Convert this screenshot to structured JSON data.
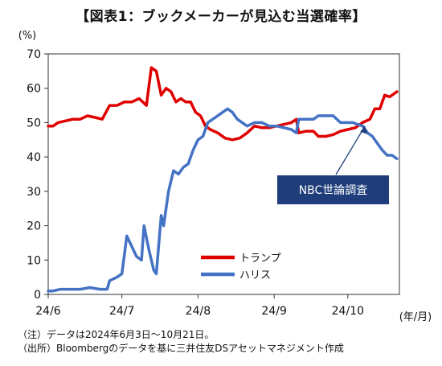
{
  "title": "【図表1：ブックメーカーが見込む当選確率】",
  "notes": [
    "（注）データは2024年6月3日～10月21日。",
    "（出所）Bloombergのデータを基に三井住友DSアセットマネジメント作成"
  ],
  "chart_data": {
    "type": "line",
    "ylabel": "(%)",
    "xlabel": "(年/月)",
    "ylim": [
      0,
      70
    ],
    "yticks": [
      0,
      10,
      20,
      30,
      40,
      50,
      60,
      70
    ],
    "xlim": [
      "2024-06-01",
      "2024-10-22"
    ],
    "xticks": [
      {
        "date": "2024-06-01",
        "label": "24/6"
      },
      {
        "date": "2024-07-01",
        "label": "24/7"
      },
      {
        "date": "2024-08-01",
        "label": "24/8"
      },
      {
        "date": "2024-09-01",
        "label": "24/9"
      },
      {
        "date": "2024-10-01",
        "label": "24/10"
      }
    ],
    "grid": false,
    "legend": "center",
    "series": [
      {
        "name": "トランプ",
        "color": "#e00000",
        "points": [
          [
            "2024-06-01",
            49
          ],
          [
            "2024-06-03",
            49
          ],
          [
            "2024-06-05",
            50
          ],
          [
            "2024-06-08",
            50.5
          ],
          [
            "2024-06-11",
            51
          ],
          [
            "2024-06-14",
            51
          ],
          [
            "2024-06-17",
            52
          ],
          [
            "2024-06-20",
            51.5
          ],
          [
            "2024-06-23",
            51
          ],
          [
            "2024-06-26",
            55
          ],
          [
            "2024-06-29",
            55
          ],
          [
            "2024-07-02",
            56
          ],
          [
            "2024-07-05",
            56
          ],
          [
            "2024-07-08",
            57
          ],
          [
            "2024-07-11",
            55
          ],
          [
            "2024-07-13",
            66
          ],
          [
            "2024-07-15",
            65
          ],
          [
            "2024-07-17",
            58
          ],
          [
            "2024-07-19",
            60
          ],
          [
            "2024-07-21",
            59
          ],
          [
            "2024-07-23",
            56
          ],
          [
            "2024-07-25",
            57
          ],
          [
            "2024-07-27",
            56
          ],
          [
            "2024-07-29",
            56
          ],
          [
            "2024-07-31",
            53
          ],
          [
            "2024-08-02",
            52
          ],
          [
            "2024-08-04",
            49
          ],
          [
            "2024-08-06",
            48
          ],
          [
            "2024-08-09",
            47
          ],
          [
            "2024-08-12",
            45.5
          ],
          [
            "2024-08-15",
            45
          ],
          [
            "2024-08-18",
            45.5
          ],
          [
            "2024-08-21",
            47
          ],
          [
            "2024-08-24",
            49
          ],
          [
            "2024-08-27",
            48.5
          ],
          [
            "2024-08-30",
            48.5
          ],
          [
            "2024-09-02",
            49
          ],
          [
            "2024-09-05",
            49.5
          ],
          [
            "2024-09-08",
            50
          ],
          [
            "2024-09-10",
            51
          ],
          [
            "2024-09-11",
            47
          ],
          [
            "2024-09-14",
            47.5
          ],
          [
            "2024-09-17",
            47.5
          ],
          [
            "2024-09-19",
            46
          ],
          [
            "2024-09-22",
            46
          ],
          [
            "2024-09-25",
            46.5
          ],
          [
            "2024-09-28",
            47.5
          ],
          [
            "2024-10-01",
            48
          ],
          [
            "2024-10-04",
            48.5
          ],
          [
            "2024-10-07",
            50
          ],
          [
            "2024-10-10",
            51
          ],
          [
            "2024-10-12",
            54
          ],
          [
            "2024-10-14",
            54
          ],
          [
            "2024-10-16",
            58
          ],
          [
            "2024-10-18",
            57.5
          ],
          [
            "2024-10-21",
            59
          ]
        ]
      },
      {
        "name": "ハリス",
        "color": "#4472c4",
        "points": [
          [
            "2024-06-01",
            1
          ],
          [
            "2024-06-03",
            1
          ],
          [
            "2024-06-06",
            1.5
          ],
          [
            "2024-06-10",
            1.5
          ],
          [
            "2024-06-14",
            1.5
          ],
          [
            "2024-06-18",
            2
          ],
          [
            "2024-06-22",
            1.5
          ],
          [
            "2024-06-25",
            1.5
          ],
          [
            "2024-06-26",
            4
          ],
          [
            "2024-06-29",
            5
          ],
          [
            "2024-07-01",
            6
          ],
          [
            "2024-07-03",
            17
          ],
          [
            "2024-07-05",
            14
          ],
          [
            "2024-07-07",
            11
          ],
          [
            "2024-07-09",
            10
          ],
          [
            "2024-07-10",
            20
          ],
          [
            "2024-07-12",
            13
          ],
          [
            "2024-07-14",
            7
          ],
          [
            "2024-07-15",
            6
          ],
          [
            "2024-07-17",
            23
          ],
          [
            "2024-07-18",
            20
          ],
          [
            "2024-07-20",
            30
          ],
          [
            "2024-07-22",
            36
          ],
          [
            "2024-07-24",
            35
          ],
          [
            "2024-07-26",
            37
          ],
          [
            "2024-07-28",
            38
          ],
          [
            "2024-07-30",
            42
          ],
          [
            "2024-08-01",
            45
          ],
          [
            "2024-08-03",
            46
          ],
          [
            "2024-08-05",
            50
          ],
          [
            "2024-08-07",
            51
          ],
          [
            "2024-08-09",
            52
          ],
          [
            "2024-08-11",
            53
          ],
          [
            "2024-08-13",
            54
          ],
          [
            "2024-08-15",
            53
          ],
          [
            "2024-08-17",
            51
          ],
          [
            "2024-08-19",
            50
          ],
          [
            "2024-08-21",
            49
          ],
          [
            "2024-08-24",
            50
          ],
          [
            "2024-08-27",
            50
          ],
          [
            "2024-08-30",
            49
          ],
          [
            "2024-09-02",
            49
          ],
          [
            "2024-09-05",
            48.5
          ],
          [
            "2024-09-08",
            48
          ],
          [
            "2024-09-10",
            47
          ],
          [
            "2024-09-11",
            51
          ],
          [
            "2024-09-14",
            51
          ],
          [
            "2024-09-17",
            51
          ],
          [
            "2024-09-19",
            52
          ],
          [
            "2024-09-22",
            52
          ],
          [
            "2024-09-25",
            52
          ],
          [
            "2024-09-28",
            50
          ],
          [
            "2024-10-01",
            50
          ],
          [
            "2024-10-03",
            50
          ],
          [
            "2024-10-05",
            49.5
          ],
          [
            "2024-10-07",
            49
          ],
          [
            "2024-10-09",
            47
          ],
          [
            "2024-10-11",
            46
          ],
          [
            "2024-10-13",
            44
          ],
          [
            "2024-10-15",
            42
          ],
          [
            "2024-10-17",
            40.5
          ],
          [
            "2024-10-19",
            40.5
          ],
          [
            "2024-10-21",
            39.5
          ]
        ]
      }
    ],
    "annotations": [
      {
        "text": "NBC世論調査",
        "date": "2024-10-08",
        "value": 49,
        "fill": "#1f3d7a",
        "text_color": "#ffffff"
      }
    ]
  }
}
